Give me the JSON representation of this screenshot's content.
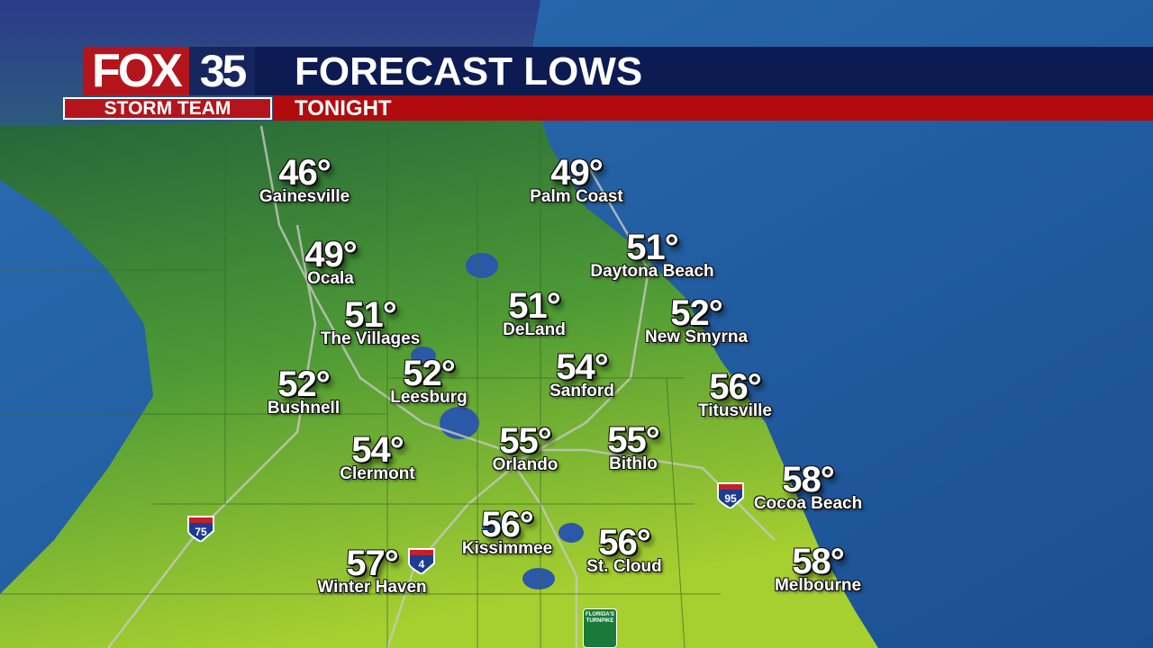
{
  "header": {
    "logo": {
      "brand": "FOX",
      "channel": "35",
      "team": "STORM TEAM"
    },
    "title": "FORECAST LOWS",
    "subtitle": "TONIGHT"
  },
  "colors": {
    "header_navy": "#0c1b52",
    "header_red": "#b10b0d",
    "land_north": "#2f7d3a",
    "land_south": "#9bc832",
    "ocean": "#1f5aa0"
  },
  "cities": [
    {
      "name": "Gainesville",
      "temp": "46°"
    },
    {
      "name": "Palm Coast",
      "temp": "49°"
    },
    {
      "name": "Daytona Beach",
      "temp": "51°"
    },
    {
      "name": "Ocala",
      "temp": "49°"
    },
    {
      "name": "The Villages",
      "temp": "51°"
    },
    {
      "name": "DeLand",
      "temp": "51°"
    },
    {
      "name": "New Smyrna",
      "temp": "52°"
    },
    {
      "name": "Bushnell",
      "temp": "52°"
    },
    {
      "name": "Leesburg",
      "temp": "52°"
    },
    {
      "name": "Sanford",
      "temp": "54°"
    },
    {
      "name": "Titusville",
      "temp": "56°"
    },
    {
      "name": "Clermont",
      "temp": "54°"
    },
    {
      "name": "Orlando",
      "temp": "55°"
    },
    {
      "name": "Bithlo",
      "temp": "55°"
    },
    {
      "name": "Cocoa Beach",
      "temp": "58°"
    },
    {
      "name": "Kissimmee",
      "temp": "56°"
    },
    {
      "name": "St. Cloud",
      "temp": "56°"
    },
    {
      "name": "Winter Haven",
      "temp": "57°"
    },
    {
      "name": "Melbourne",
      "temp": "58°"
    }
  ],
  "highway_shields": [
    {
      "label": "75",
      "type": "interstate"
    },
    {
      "label": "4",
      "type": "interstate"
    },
    {
      "label": "95",
      "type": "interstate"
    },
    {
      "label": "FLORIDA'S TURNPIKE",
      "type": "turnpike"
    }
  ]
}
